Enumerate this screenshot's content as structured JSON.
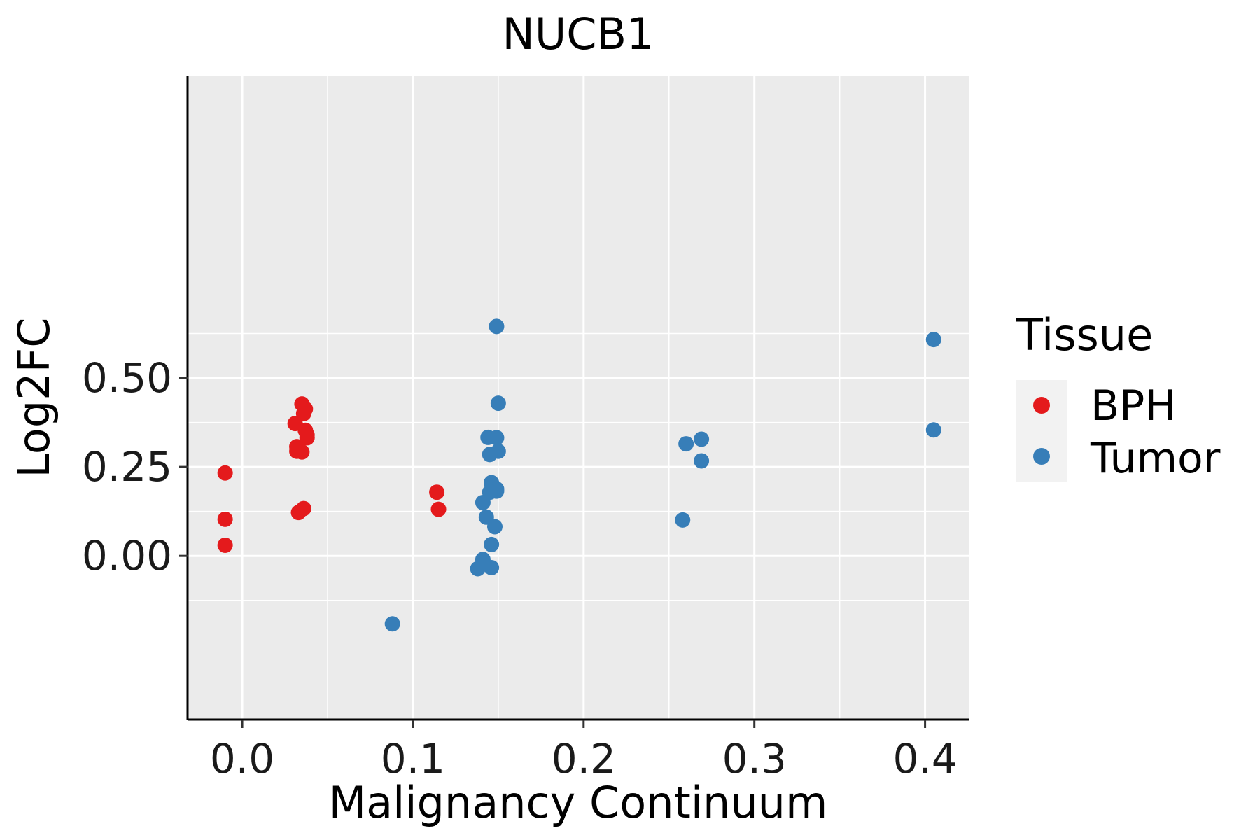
{
  "chart_data": {
    "type": "scatter",
    "title": "NUCB1",
    "xlabel": "Malignancy Continuum",
    "ylabel": "Log2FC",
    "xlim": [
      -0.032,
      0.426
    ],
    "ylim": [
      -0.46,
      1.35
    ],
    "x_ticks": [
      0.0,
      0.1,
      0.2,
      0.3,
      0.4
    ],
    "x_tick_labels": [
      "0.0",
      "0.1",
      "0.2",
      "0.3",
      "0.4"
    ],
    "y_ticks": [
      0.0,
      0.25,
      0.5
    ],
    "y_tick_labels": [
      "0.00",
      "0.25",
      "0.50"
    ],
    "x_minor": [
      0.05,
      0.15,
      0.25,
      0.35
    ],
    "y_minor": [
      -0.125,
      0.125,
      0.375,
      0.625
    ],
    "grid": true,
    "legend": {
      "title": "Tissue",
      "position": "right",
      "entries": [
        {
          "label": "BPH",
          "color": "#E41A1C"
        },
        {
          "label": "Tumor",
          "color": "#377EB8"
        }
      ]
    },
    "series": [
      {
        "name": "BPH",
        "color": "#E41A1C",
        "points": [
          {
            "x": -0.01,
            "y": 0.233
          },
          {
            "x": -0.01,
            "y": 0.103
          },
          {
            "x": -0.01,
            "y": 0.03
          },
          {
            "x": 0.035,
            "y": 0.427
          },
          {
            "x": 0.037,
            "y": 0.413
          },
          {
            "x": 0.036,
            "y": 0.4
          },
          {
            "x": 0.031,
            "y": 0.372
          },
          {
            "x": 0.037,
            "y": 0.353
          },
          {
            "x": 0.038,
            "y": 0.34
          },
          {
            "x": 0.038,
            "y": 0.332
          },
          {
            "x": 0.032,
            "y": 0.307
          },
          {
            "x": 0.032,
            "y": 0.294
          },
          {
            "x": 0.035,
            "y": 0.292
          },
          {
            "x": 0.036,
            "y": 0.133
          },
          {
            "x": 0.033,
            "y": 0.122
          },
          {
            "x": 0.114,
            "y": 0.179
          },
          {
            "x": 0.115,
            "y": 0.131
          }
        ]
      },
      {
        "name": "Tumor",
        "color": "#377EB8",
        "points": [
          {
            "x": 0.149,
            "y": 0.645
          },
          {
            "x": 0.15,
            "y": 0.429
          },
          {
            "x": 0.144,
            "y": 0.333
          },
          {
            "x": 0.149,
            "y": 0.332
          },
          {
            "x": 0.15,
            "y": 0.294
          },
          {
            "x": 0.145,
            "y": 0.285
          },
          {
            "x": 0.146,
            "y": 0.206
          },
          {
            "x": 0.147,
            "y": 0.196
          },
          {
            "x": 0.149,
            "y": 0.188
          },
          {
            "x": 0.149,
            "y": 0.182
          },
          {
            "x": 0.145,
            "y": 0.179
          },
          {
            "x": 0.141,
            "y": 0.15
          },
          {
            "x": 0.143,
            "y": 0.109
          },
          {
            "x": 0.148,
            "y": 0.082
          },
          {
            "x": 0.146,
            "y": 0.032
          },
          {
            "x": 0.141,
            "y": -0.01
          },
          {
            "x": 0.138,
            "y": -0.036
          },
          {
            "x": 0.146,
            "y": -0.033
          },
          {
            "x": 0.088,
            "y": -0.191
          },
          {
            "x": 0.26,
            "y": 0.315
          },
          {
            "x": 0.269,
            "y": 0.328
          },
          {
            "x": 0.269,
            "y": 0.267
          },
          {
            "x": 0.258,
            "y": 0.101
          },
          {
            "x": 0.405,
            "y": 0.608
          },
          {
            "x": 0.405,
            "y": 0.354
          }
        ]
      }
    ]
  }
}
